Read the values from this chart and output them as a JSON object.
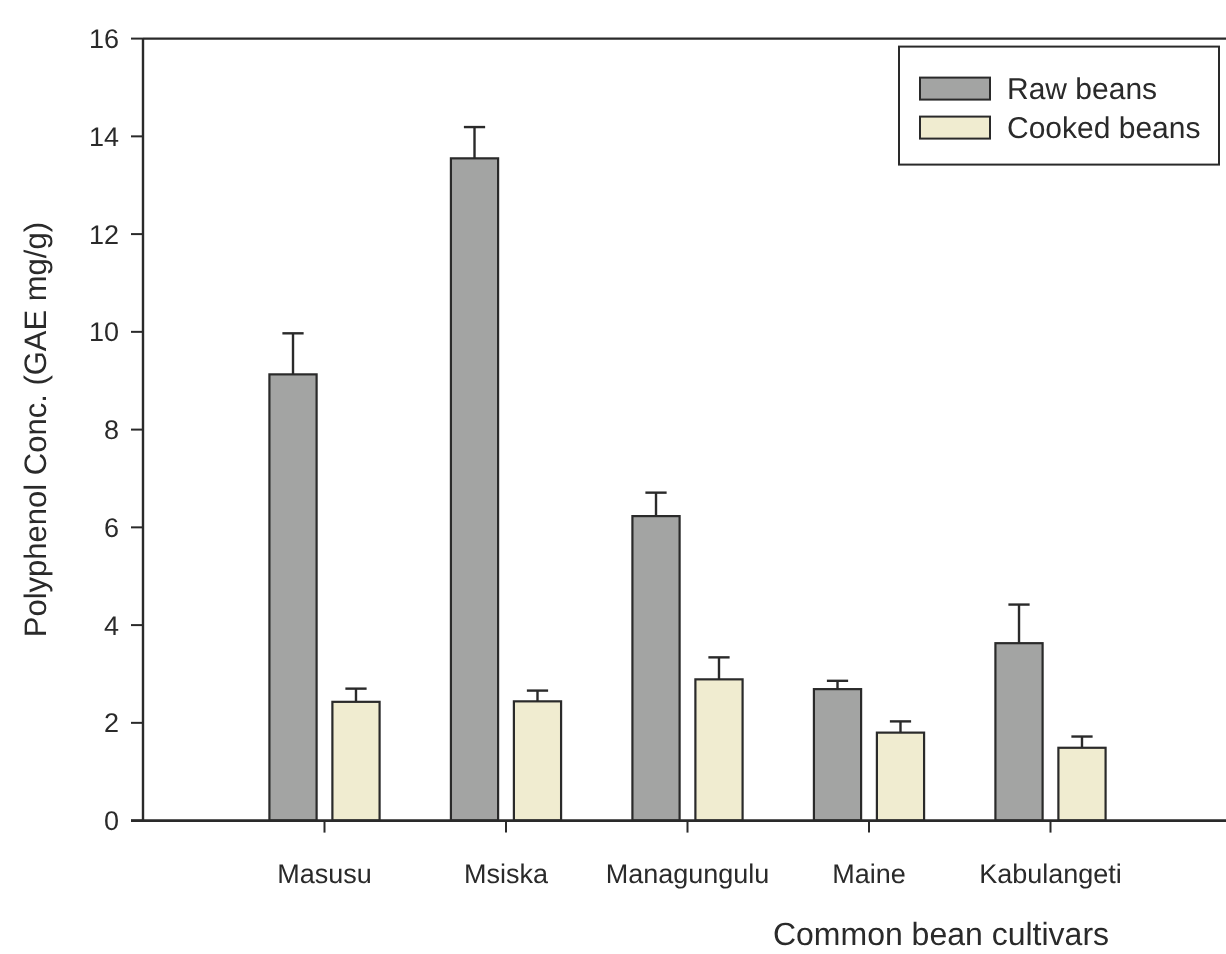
{
  "chart_data": {
    "type": "bar",
    "xlabel": "Common bean cultivars",
    "ylabel": "Polyphenol Conc. (GAE mg/g)",
    "categories": [
      "Masusu",
      "Msiska",
      "Managungulu",
      "Maine",
      "Kabulangeti"
    ],
    "series": [
      {
        "name": "Raw beans",
        "color": "#a3a4a3",
        "values": [
          9.13,
          13.55,
          6.23,
          2.69,
          3.63
        ],
        "errors": [
          [
            9.13,
            9.97
          ],
          [
            13.55,
            14.19
          ],
          [
            6.23,
            6.71
          ],
          [
            2.69,
            2.86
          ],
          [
            3.63,
            4.42
          ]
        ]
      },
      {
        "name": "Cooked beans",
        "color": "#f0ecd0",
        "values": [
          2.43,
          2.44,
          2.89,
          1.8,
          1.49
        ],
        "errors": [
          [
            2.43,
            2.7
          ],
          [
            2.44,
            2.66
          ],
          [
            2.89,
            3.34
          ],
          [
            1.8,
            2.03
          ],
          [
            1.49,
            1.72
          ]
        ]
      }
    ],
    "ylim": [
      0,
      16
    ],
    "yticks": [
      0,
      2,
      4,
      6,
      8,
      10,
      12,
      14,
      16
    ],
    "grid": false,
    "legend": "top right"
  }
}
